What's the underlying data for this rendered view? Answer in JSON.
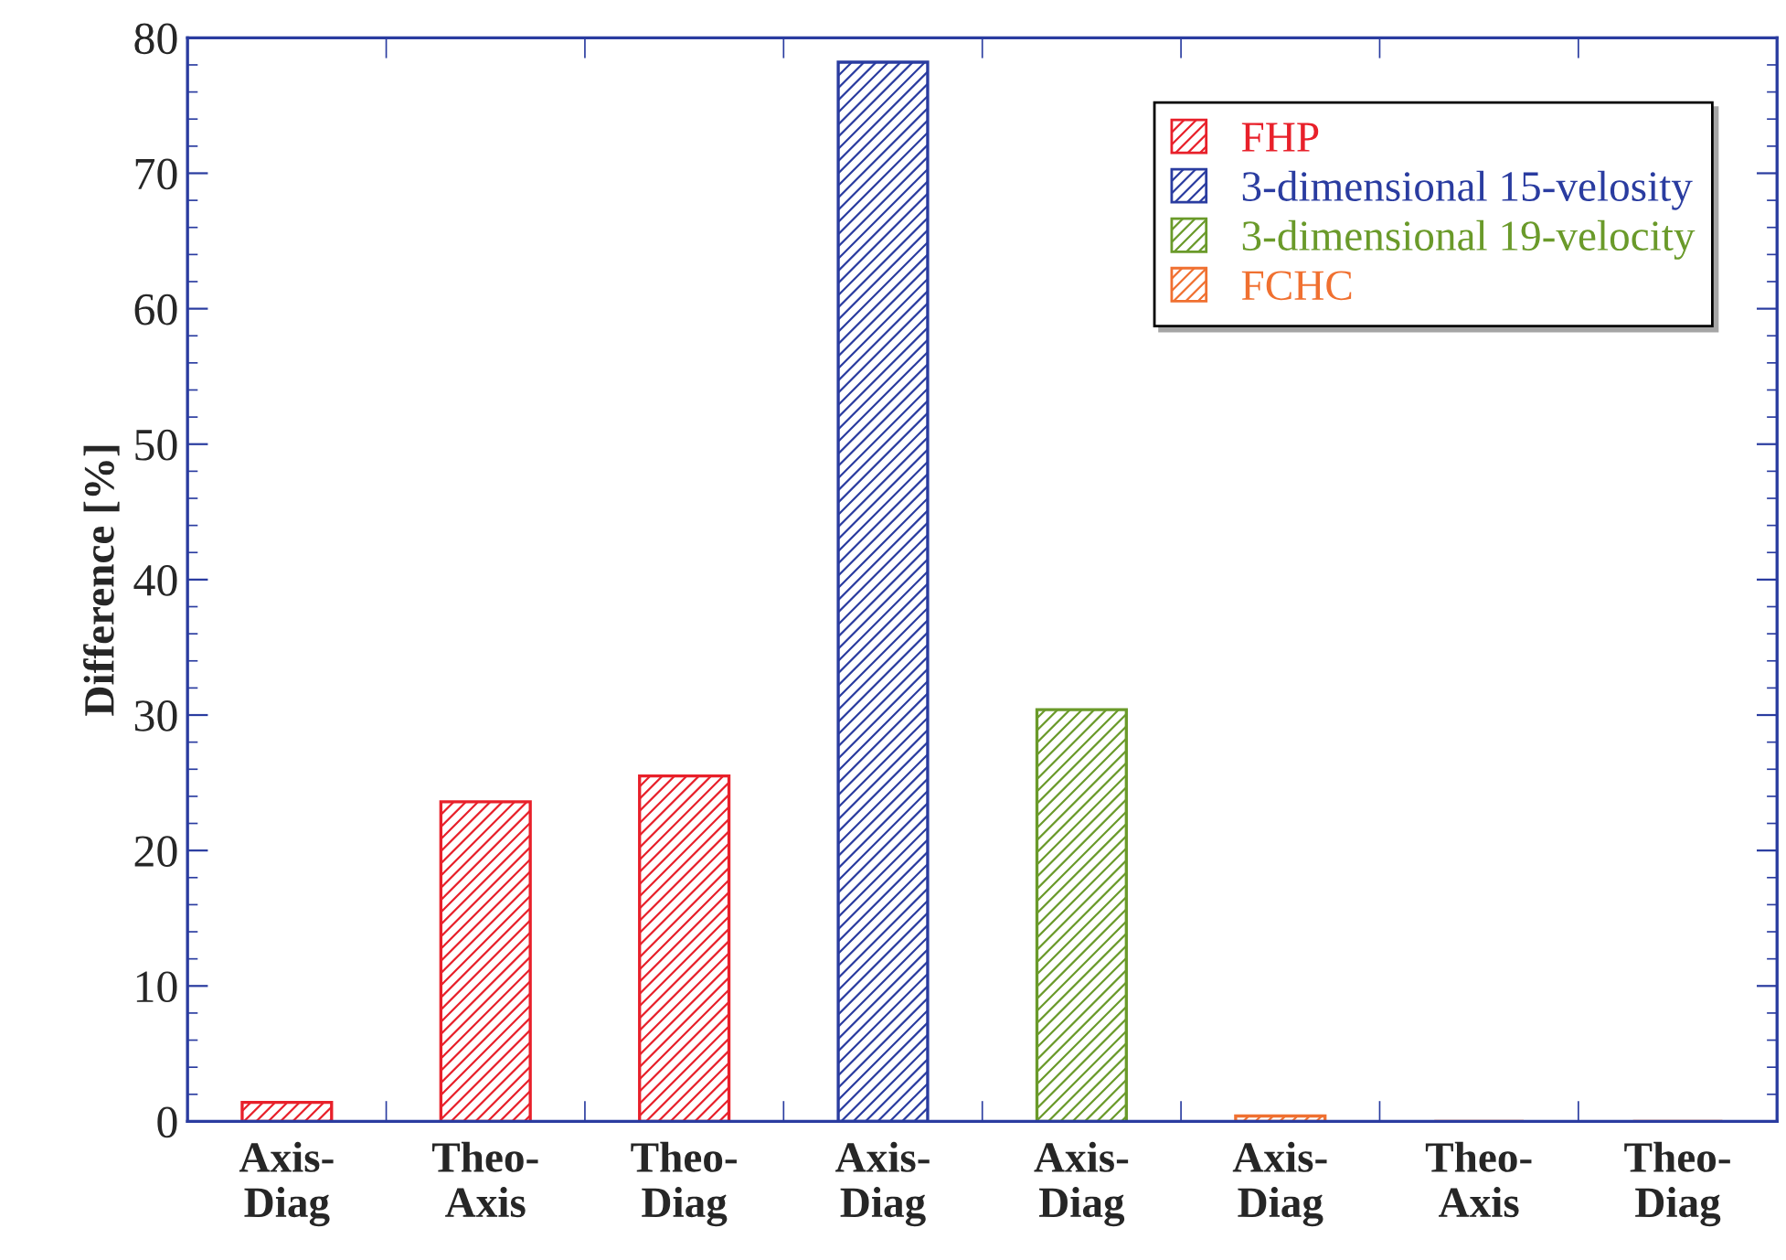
{
  "chart_data": {
    "type": "bar",
    "ylabel": "Difference [%]",
    "categories": [
      "Axis-\nDiag",
      "Theo-\nAxis",
      "Theo-\nDiag",
      "Axis-\nDiag",
      "Axis-\nDiag",
      "Axis-\nDiag",
      "Theo-\nAxis",
      "Theo-\nDiag"
    ],
    "series": [
      {
        "name": "FHP",
        "color": "#e8202a",
        "values": [
          1.4,
          23.6,
          25.5,
          null,
          null,
          null,
          null,
          null
        ]
      },
      {
        "name": "3-dimensional 15-velosity",
        "color": "#2a3ca0",
        "values": [
          null,
          null,
          null,
          78.2,
          null,
          null,
          null,
          null
        ]
      },
      {
        "name": "3-dimensional 19-velocity",
        "color": "#6a9a2a",
        "values": [
          null,
          null,
          null,
          null,
          30.4,
          null,
          null,
          null
        ]
      },
      {
        "name": "FCHC",
        "color": "#f07030",
        "values": [
          null,
          null,
          null,
          null,
          null,
          0.4,
          0,
          0
        ]
      }
    ],
    "ylim": [
      0,
      80
    ],
    "yticks": [
      0,
      10,
      20,
      30,
      40,
      50,
      60,
      70,
      80
    ],
    "grid": false,
    "legend": "top right"
  }
}
